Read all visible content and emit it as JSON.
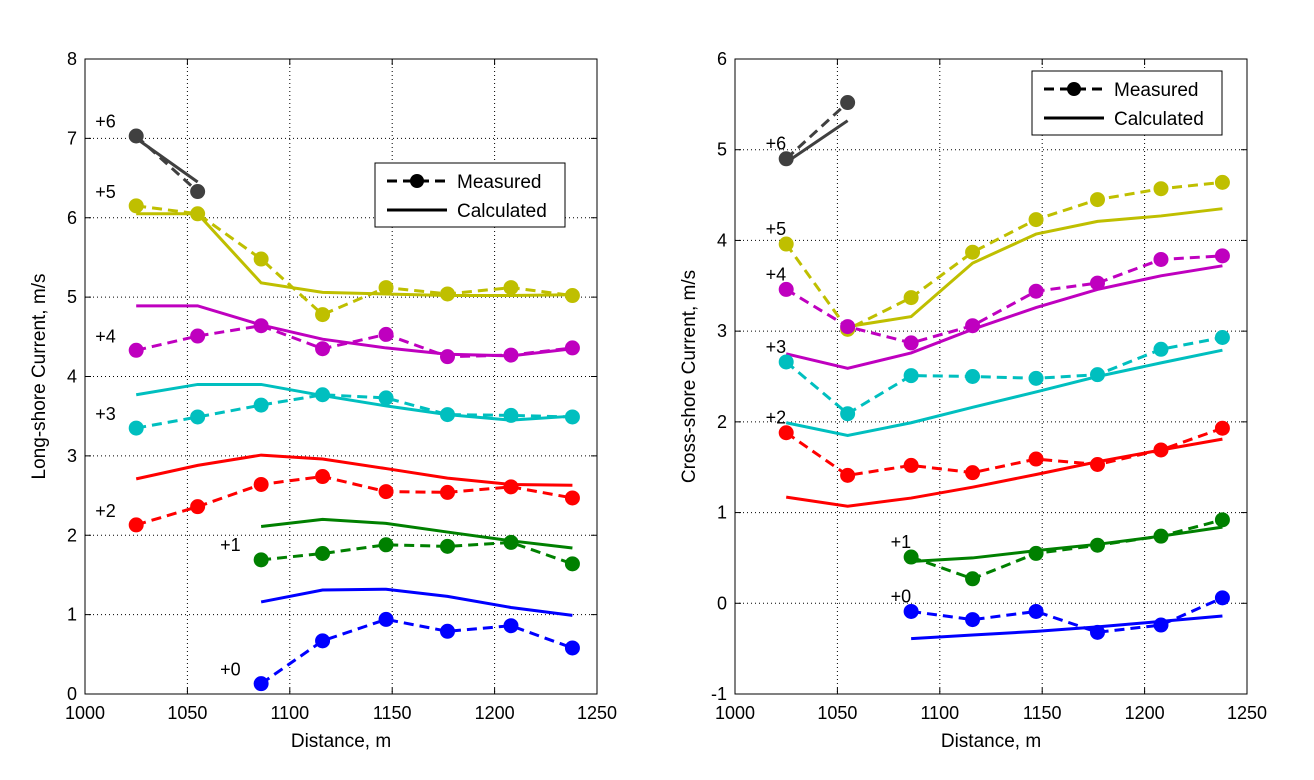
{
  "chart_data": [
    {
      "type": "line",
      "xlabel": "Distance, m",
      "ylabel": "Long-shore Current, m/s",
      "xlim": [
        1000,
        1250
      ],
      "ylim": [
        0,
        8
      ],
      "xticks": [
        "1000",
        "1050",
        "1100",
        "1150",
        "1200",
        "1250"
      ],
      "yticks": [
        "0",
        "1",
        "2",
        "3",
        "4",
        "5",
        "6",
        "7",
        "8"
      ],
      "grid": true,
      "legend": {
        "position": "top-right",
        "measured": "Measured",
        "calculated": "Calculated"
      },
      "series": [
        {
          "label": "+6",
          "color": "#404040",
          "measured": {
            "x": [
              1025,
              1055
            ],
            "y": [
              7.03,
              6.33
            ]
          },
          "calculated": {
            "x": [
              1025,
              1055
            ],
            "y": [
              7.0,
              6.45
            ]
          }
        },
        {
          "label": "+5",
          "color": "#bfbf00",
          "measured": {
            "x": [
              1025,
              1055,
              1086,
              1116,
              1147,
              1177,
              1208,
              1238
            ],
            "y": [
              6.15,
              6.05,
              5.48,
              4.78,
              5.12,
              5.04,
              5.12,
              5.02
            ]
          },
          "calculated": {
            "x": [
              1025,
              1055,
              1086,
              1116,
              1147,
              1177,
              1208,
              1238
            ],
            "y": [
              6.05,
              6.05,
              5.18,
              5.06,
              5.04,
              5.02,
              5.02,
              5.03
            ]
          }
        },
        {
          "label": "+4",
          "color": "#bf00bf",
          "measured": {
            "x": [
              1025,
              1055,
              1086,
              1116,
              1147,
              1177,
              1208,
              1238
            ],
            "y": [
              4.33,
              4.51,
              4.64,
              4.35,
              4.53,
              4.25,
              4.27,
              4.36
            ]
          },
          "calculated": {
            "x": [
              1025,
              1055,
              1086,
              1116,
              1147,
              1177,
              1208,
              1238
            ],
            "y": [
              4.89,
              4.89,
              4.65,
              4.47,
              4.36,
              4.28,
              4.26,
              4.35
            ]
          }
        },
        {
          "label": "+3",
          "color": "#00bfbf",
          "measured": {
            "x": [
              1025,
              1055,
              1086,
              1116,
              1147,
              1177,
              1208,
              1238
            ],
            "y": [
              3.35,
              3.49,
              3.64,
              3.77,
              3.73,
              3.52,
              3.51,
              3.49
            ]
          },
          "calculated": {
            "x": [
              1025,
              1055,
              1086,
              1116,
              1147,
              1177,
              1208,
              1238
            ],
            "y": [
              3.77,
              3.9,
              3.9,
              3.76,
              3.63,
              3.52,
              3.45,
              3.5
            ]
          }
        },
        {
          "label": "+2",
          "color": "#ff0000",
          "measured": {
            "x": [
              1025,
              1055,
              1086,
              1116,
              1147,
              1177,
              1208,
              1238
            ],
            "y": [
              2.13,
              2.36,
              2.64,
              2.74,
              2.55,
              2.54,
              2.61,
              2.47
            ]
          },
          "calculated": {
            "x": [
              1025,
              1055,
              1086,
              1116,
              1147,
              1177,
              1208,
              1238
            ],
            "y": [
              2.71,
              2.88,
              3.01,
              2.96,
              2.84,
              2.72,
              2.64,
              2.63
            ]
          }
        },
        {
          "label": "+1",
          "color": "#008000",
          "measured": {
            "x": [
              1086,
              1116,
              1147,
              1177,
              1208,
              1238
            ],
            "y": [
              1.69,
              1.77,
              1.88,
              1.86,
              1.91,
              1.64
            ]
          },
          "calculated": {
            "x": [
              1086,
              1116,
              1147,
              1177,
              1208,
              1238
            ],
            "y": [
              2.11,
              2.2,
              2.15,
              2.04,
              1.93,
              1.84
            ]
          }
        },
        {
          "label": "+0",
          "color": "#0000ff",
          "measured": {
            "x": [
              1086,
              1116,
              1147,
              1177,
              1208,
              1238
            ],
            "y": [
              0.13,
              0.67,
              0.94,
              0.79,
              0.86,
              0.58
            ]
          },
          "calculated": {
            "x": [
              1086,
              1116,
              1147,
              1177,
              1208,
              1238
            ],
            "y": [
              1.16,
              1.31,
              1.32,
              1.23,
              1.09,
              0.99
            ]
          }
        }
      ]
    },
    {
      "type": "line",
      "xlabel": "Distance, m",
      "ylabel": "Cross-shore Current, m/s",
      "xlim": [
        1000,
        1250
      ],
      "ylim": [
        -1,
        6
      ],
      "xticks": [
        "1000",
        "1050",
        "1100",
        "1150",
        "1200",
        "1250"
      ],
      "yticks": [
        "-1",
        "0",
        "1",
        "2",
        "3",
        "4",
        "5",
        "6"
      ],
      "grid": true,
      "legend": {
        "position": "top-right",
        "measured": "Measured",
        "calculated": "Calculated"
      },
      "series": [
        {
          "label": "+6",
          "color": "#404040",
          "measured": {
            "x": [
              1025,
              1055
            ],
            "y": [
              4.9,
              5.52
            ]
          },
          "calculated": {
            "x": [
              1025,
              1055
            ],
            "y": [
              4.86,
              5.32
            ]
          }
        },
        {
          "label": "+5",
          "color": "#bfbf00",
          "measured": {
            "x": [
              1025,
              1055,
              1086,
              1116,
              1147,
              1177,
              1208,
              1238
            ],
            "y": [
              3.96,
              3.02,
              3.37,
              3.87,
              4.23,
              4.45,
              4.57,
              4.64
            ]
          },
          "calculated": {
            "x": [
              1025,
              1055,
              1086,
              1116,
              1147,
              1177,
              1208,
              1238
            ],
            "y": [
              null,
              3.05,
              3.16,
              3.75,
              4.07,
              4.21,
              4.27,
              4.35
            ]
          }
        },
        {
          "label": "+4",
          "color": "#bf00bf",
          "measured": {
            "x": [
              1025,
              1055,
              1086,
              1116,
              1147,
              1177,
              1208,
              1238
            ],
            "y": [
              3.46,
              3.05,
              2.87,
              3.06,
              3.44,
              3.53,
              3.79,
              3.83
            ]
          },
          "calculated": {
            "x": [
              1025,
              1055,
              1086,
              1116,
              1147,
              1177,
              1208,
              1238
            ],
            "y": [
              2.75,
              2.59,
              2.76,
              3.02,
              3.26,
              3.46,
              3.61,
              3.72
            ]
          }
        },
        {
          "label": "+3",
          "color": "#00bfbf",
          "measured": {
            "x": [
              1025,
              1055,
              1086,
              1116,
              1147,
              1177,
              1208,
              1238
            ],
            "y": [
              2.66,
              2.09,
              2.51,
              2.5,
              2.48,
              2.52,
              2.8,
              2.93
            ]
          },
          "calculated": {
            "x": [
              1025,
              1055,
              1086,
              1116,
              1147,
              1177,
              1208,
              1238
            ],
            "y": [
              1.99,
              1.85,
              1.99,
              2.16,
              2.33,
              2.5,
              2.65,
              2.79
            ]
          }
        },
        {
          "label": "+2",
          "color": "#ff0000",
          "measured": {
            "x": [
              1025,
              1055,
              1086,
              1116,
              1147,
              1177,
              1208,
              1238
            ],
            "y": [
              1.88,
              1.41,
              1.52,
              1.44,
              1.59,
              1.53,
              1.69,
              1.93
            ]
          },
          "calculated": {
            "x": [
              1025,
              1055,
              1086,
              1116,
              1147,
              1177,
              1208,
              1238
            ],
            "y": [
              1.17,
              1.07,
              1.16,
              1.28,
              1.42,
              1.56,
              1.69,
              1.81
            ]
          }
        },
        {
          "label": "+1",
          "color": "#008000",
          "measured": {
            "x": [
              1086,
              1116,
              1147,
              1177,
              1208,
              1238
            ],
            "y": [
              0.51,
              0.27,
              0.55,
              0.64,
              0.74,
              0.92
            ]
          },
          "calculated": {
            "x": [
              1086,
              1116,
              1147,
              1177,
              1208,
              1238
            ],
            "y": [
              0.46,
              0.5,
              0.58,
              0.65,
              0.74,
              0.84
            ]
          }
        },
        {
          "label": "+0",
          "color": "#0000ff",
          "measured": {
            "x": [
              1086,
              1116,
              1147,
              1177,
              1208,
              1238
            ],
            "y": [
              -0.09,
              -0.18,
              -0.09,
              -0.32,
              -0.24,
              0.06
            ]
          },
          "calculated": {
            "x": [
              1086,
              1116,
              1147,
              1177,
              1208,
              1238
            ],
            "y": [
              -0.39,
              -0.35,
              -0.31,
              -0.26,
              -0.2,
              -0.14
            ]
          }
        }
      ]
    }
  ]
}
